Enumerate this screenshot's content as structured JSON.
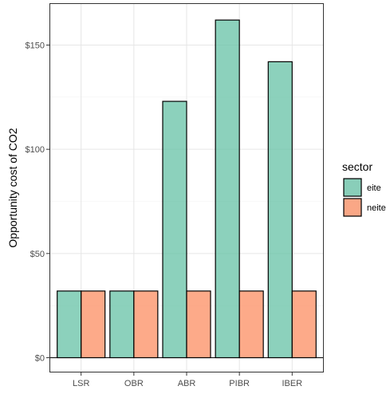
{
  "chart_data": {
    "type": "bar",
    "categories": [
      "LSR",
      "OBR",
      "ABR",
      "PIBR",
      "IBER"
    ],
    "series": [
      {
        "name": "eite",
        "values": [
          32,
          32,
          123,
          162,
          142
        ],
        "color": "#66C2A5"
      },
      {
        "name": "neite",
        "values": [
          32,
          32,
          32,
          32,
          32
        ],
        "color": "#FC8D62"
      }
    ],
    "ylabel": "Opportunity cost of CO2",
    "xlabel": "",
    "ylim": [
      0,
      168
    ],
    "yticks": [
      0,
      50,
      100,
      150
    ],
    "ytick_labels": [
      "$0",
      "$50",
      "$100",
      "$150"
    ],
    "legend": {
      "title": "sector",
      "position": "right"
    },
    "grid": true,
    "theme": "bw"
  }
}
